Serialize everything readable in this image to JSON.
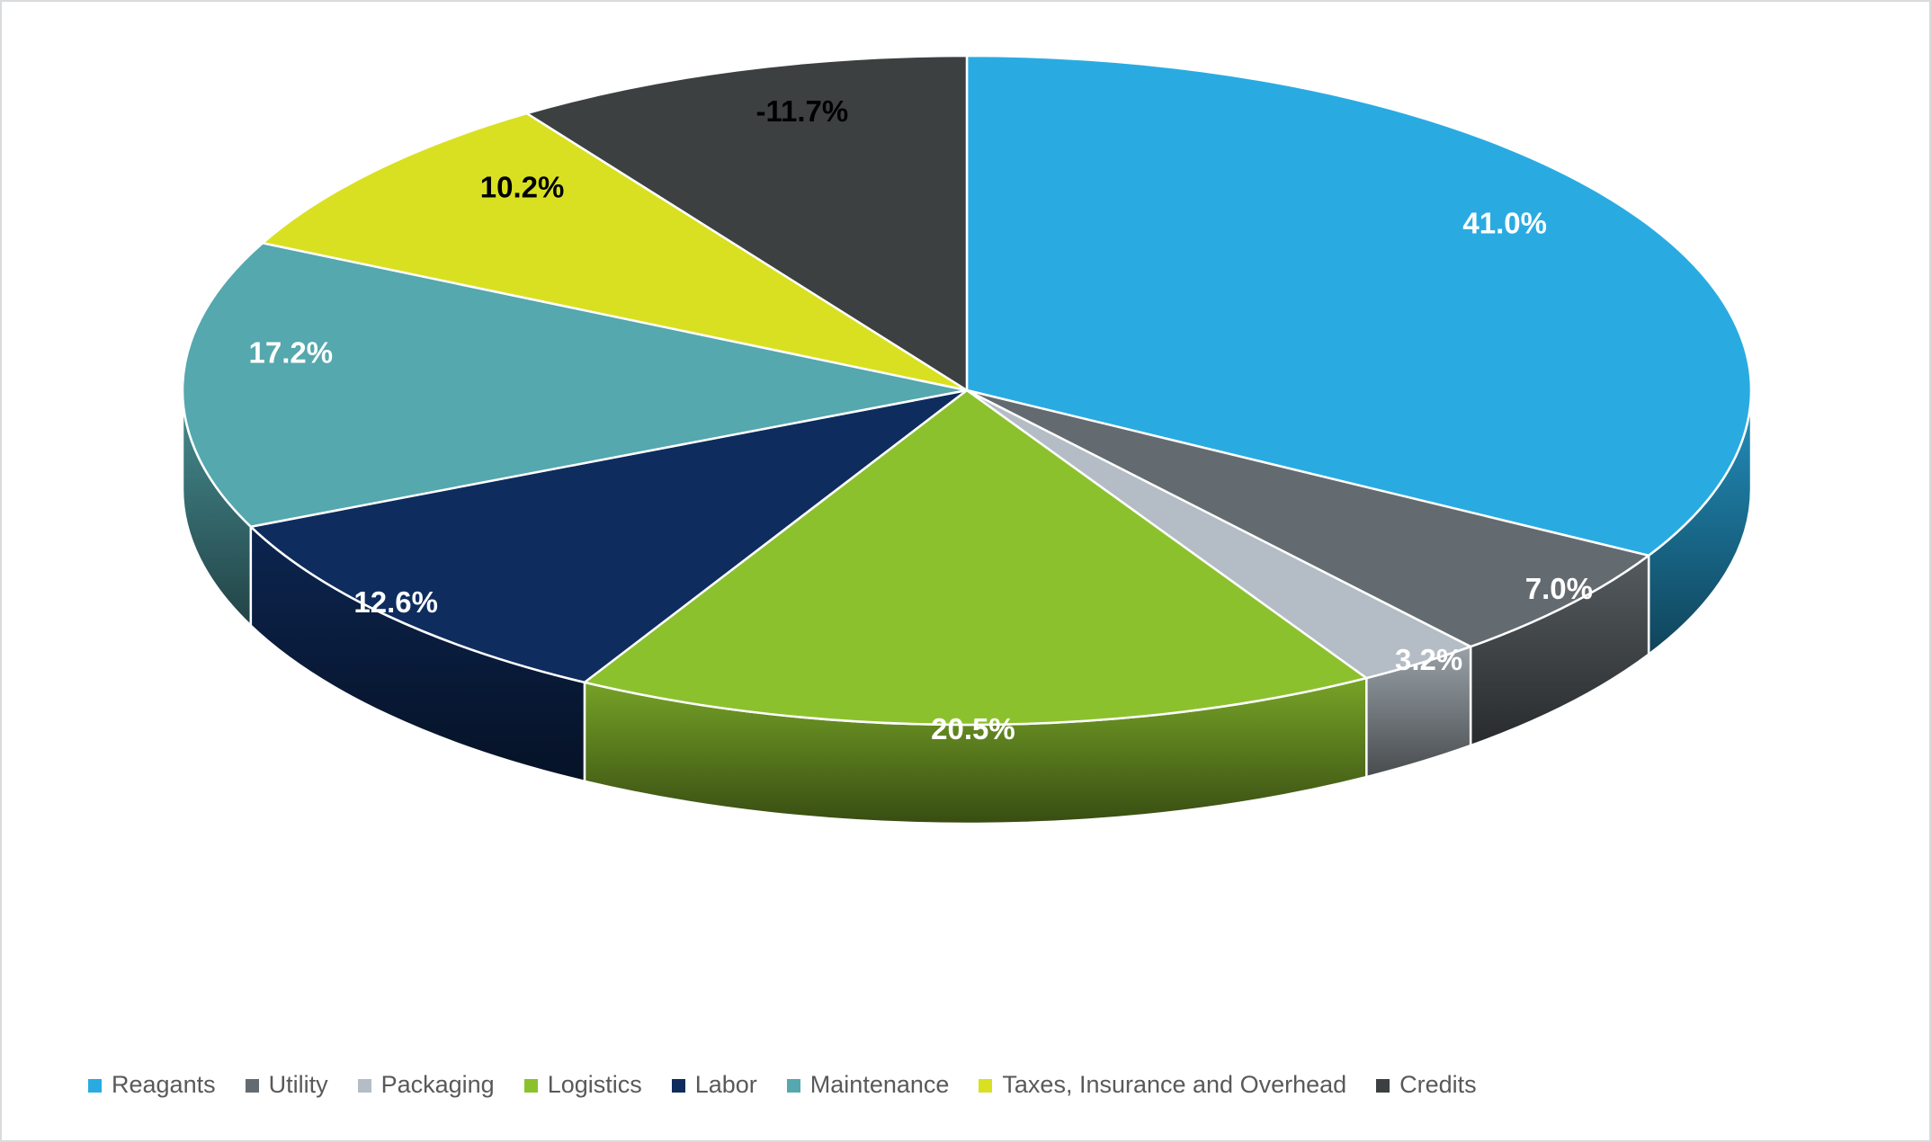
{
  "chart_data": {
    "type": "pie",
    "style": "3d",
    "title": "",
    "legend_position": "bottom",
    "start_angle_deg": 0,
    "clockwise": true,
    "slices": [
      {
        "label": "Reagants",
        "value": 41.0,
        "display": "41.0%",
        "color": "#29ABE2",
        "label_color": "#FFFFFF"
      },
      {
        "label": "Utility",
        "value": 7.0,
        "display": "7.0%",
        "color": "#646B70",
        "label_color": "#FFFFFF"
      },
      {
        "label": "Packaging",
        "value": 3.2,
        "display": "3.2%",
        "color": "#B4BDC5",
        "label_color": "#FFFFFF"
      },
      {
        "label": "Logistics",
        "value": 20.5,
        "display": "20.5%",
        "color": "#8CC12E",
        "label_color": "#FFFFFF"
      },
      {
        "label": "Labor",
        "value": 12.6,
        "display": "12.6%",
        "color": "#0E2C5E",
        "label_color": "#FFFFFF"
      },
      {
        "label": "Maintenance",
        "value": 17.2,
        "display": "17.2%",
        "color": "#54A8AE",
        "label_color": "#FFFFFF"
      },
      {
        "label": "Taxes, Insurance and Overhead",
        "value": 10.2,
        "display": "10.2%",
        "color": "#D9E021",
        "label_color": "#000000"
      },
      {
        "label": "Credits",
        "value": -11.7,
        "display": "-11.7%",
        "color": "#3C4040",
        "label_color": "#000000"
      }
    ]
  },
  "theme": {
    "background": "#FFFFFF",
    "border_color": "#D9DCDE",
    "slice_outline_color": "#FFFFFF",
    "legend_text_color": "#595959"
  }
}
